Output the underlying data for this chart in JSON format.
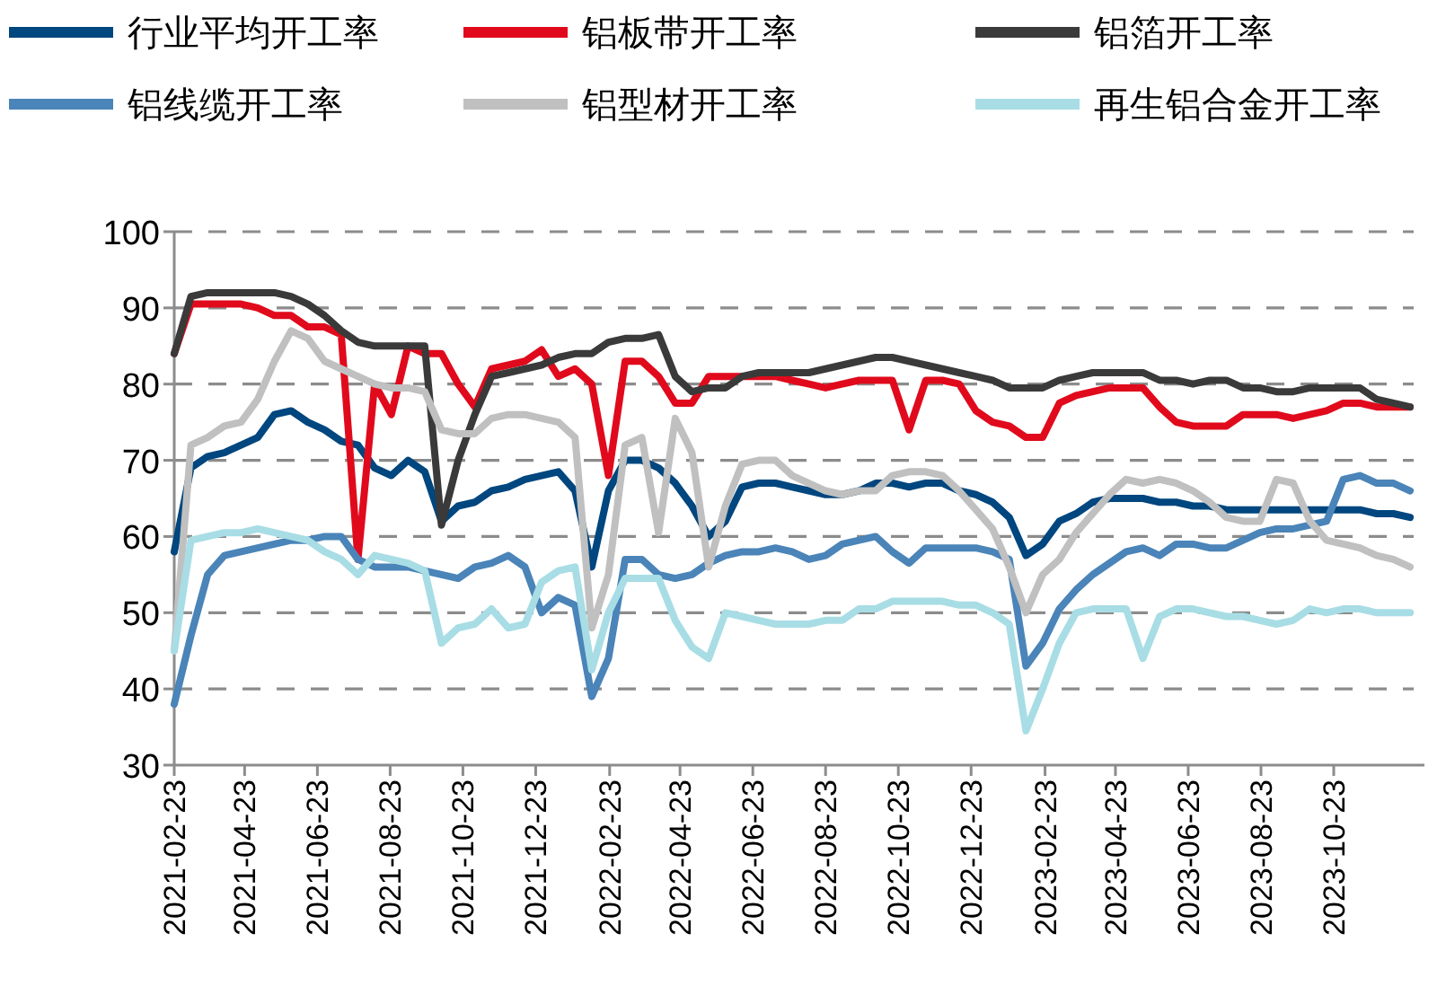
{
  "chart_data": {
    "type": "line",
    "legend": "top",
    "grid": "y",
    "xlim": [
      "2021-02-23",
      "2023-12-29"
    ],
    "ylim": [
      30,
      100
    ],
    "xticks": [
      "2021-02-23",
      "2021-04-23",
      "2021-06-23",
      "2021-08-23",
      "2021-10-23",
      "2021-12-23",
      "2022-02-23",
      "2022-04-23",
      "2022-06-23",
      "2022-08-23",
      "2022-10-23",
      "2022-12-23",
      "2023-02-23",
      "2023-04-23",
      "2023-06-23",
      "2023-08-23",
      "2023-10-23"
    ],
    "yticks": [
      30,
      40,
      50,
      60,
      70,
      80,
      90,
      100
    ],
    "x": [
      "2021-02-23",
      "2021-03-09",
      "2021-03-23",
      "2021-04-06",
      "2021-04-20",
      "2021-05-04",
      "2021-05-18",
      "2021-06-01",
      "2021-06-15",
      "2021-06-29",
      "2021-07-13",
      "2021-07-27",
      "2021-08-10",
      "2021-08-24",
      "2021-09-07",
      "2021-09-21",
      "2021-10-05",
      "2021-10-19",
      "2021-11-02",
      "2021-11-16",
      "2021-11-30",
      "2021-12-14",
      "2021-12-28",
      "2022-01-11",
      "2022-01-25",
      "2022-02-08",
      "2022-02-22",
      "2022-03-08",
      "2022-03-22",
      "2022-04-05",
      "2022-04-19",
      "2022-05-03",
      "2022-05-17",
      "2022-05-31",
      "2022-06-14",
      "2022-06-28",
      "2022-07-12",
      "2022-07-26",
      "2022-08-09",
      "2022-08-23",
      "2022-09-06",
      "2022-09-20",
      "2022-10-04",
      "2022-10-18",
      "2022-11-01",
      "2022-11-15",
      "2022-11-29",
      "2022-12-13",
      "2022-12-27",
      "2023-01-10",
      "2023-01-24",
      "2023-02-07",
      "2023-02-21",
      "2023-03-07",
      "2023-03-21",
      "2023-04-04",
      "2023-04-18",
      "2023-05-02",
      "2023-05-16",
      "2023-05-30",
      "2023-06-13",
      "2023-06-27",
      "2023-07-11",
      "2023-07-25",
      "2023-08-08",
      "2023-08-22",
      "2023-09-05",
      "2023-09-19",
      "2023-10-03",
      "2023-10-17",
      "2023-10-31",
      "2023-11-14",
      "2023-11-28",
      "2023-12-12",
      "2023-12-26"
    ],
    "series": [
      {
        "name": "行业平均开工率",
        "color": "#00467f",
        "values": [
          58,
          69,
          70.5,
          71,
          72,
          73,
          76,
          76.5,
          75,
          74,
          72.5,
          72,
          69,
          68,
          70,
          68.5,
          62,
          64,
          64.5,
          66,
          66.5,
          67.5,
          68,
          68.5,
          66,
          56,
          66,
          70,
          70,
          69,
          67,
          64,
          60,
          62,
          66.5,
          67,
          67,
          66.5,
          66,
          65.5,
          65.5,
          66,
          67,
          67,
          66.5,
          67,
          67,
          66,
          65.5,
          64.5,
          62.5,
          57.5,
          59,
          62,
          63,
          64.5,
          65,
          65,
          65,
          64.5,
          64.5,
          64,
          64,
          63.5,
          63.5,
          63.5,
          63.5,
          63.5,
          63.5,
          63.5,
          63.5,
          63.5,
          63,
          63,
          62.5
        ]
      },
      {
        "name": "铝板带开工率",
        "color": "#e00a1c",
        "values": [
          84,
          90.5,
          90.5,
          90.5,
          90.5,
          90,
          89,
          89,
          87.5,
          87.5,
          86.5,
          57,
          80,
          76,
          85,
          84,
          84,
          80,
          77,
          82,
          82.5,
          83,
          84.5,
          81,
          82,
          80,
          68,
          83,
          83,
          81,
          77.5,
          77.5,
          81,
          81,
          81,
          81,
          81,
          80.5,
          80,
          79.5,
          80,
          80.5,
          80.5,
          80.5,
          74,
          80.5,
          80.5,
          80,
          76.5,
          75,
          74.5,
          73,
          73,
          77.5,
          78.5,
          79,
          79.5,
          79.5,
          79.5,
          77,
          75,
          74.5,
          74.5,
          74.5,
          76,
          76,
          76,
          75.5,
          76,
          76.5,
          77.5,
          77.5,
          77,
          77,
          77
        ]
      },
      {
        "name": "铝箔开工率",
        "color": "#3a3a3a",
        "values": [
          84,
          91.5,
          92,
          92,
          92,
          92,
          92,
          91.5,
          90.5,
          89,
          87,
          85.5,
          85,
          85,
          85,
          85,
          61.5,
          70,
          76,
          81,
          81.5,
          82,
          82.5,
          83.5,
          84,
          84,
          85.5,
          86,
          86,
          86.5,
          81,
          79,
          79.5,
          79.5,
          81,
          81.5,
          81.5,
          81.5,
          81.5,
          82,
          82.5,
          83,
          83.5,
          83.5,
          83,
          82.5,
          82,
          81.5,
          81,
          80.5,
          79.5,
          79.5,
          79.5,
          80.5,
          81,
          81.5,
          81.5,
          81.5,
          81.5,
          80.5,
          80.5,
          80,
          80.5,
          80.5,
          79.5,
          79.5,
          79,
          79,
          79.5,
          79.5,
          79.5,
          79.5,
          78,
          77.5,
          77
        ]
      },
      {
        "name": "铝线缆开工率",
        "color": "#4a84b8",
        "values": [
          38,
          47,
          55,
          57.5,
          58,
          58.5,
          59,
          59.5,
          59.5,
          60,
          60,
          57,
          56,
          56,
          56,
          55.5,
          55,
          54.5,
          56,
          56.5,
          57.5,
          56,
          50,
          52,
          51,
          39,
          44,
          57,
          57,
          55,
          54.5,
          55,
          56.5,
          57.5,
          58,
          58,
          58.5,
          58,
          57,
          57.5,
          59,
          59.5,
          60,
          58,
          56.5,
          58.5,
          58.5,
          58.5,
          58.5,
          58,
          57,
          43,
          46,
          50.5,
          53,
          55,
          56.5,
          58,
          58.5,
          57.5,
          59,
          59,
          58.5,
          58.5,
          59.5,
          60.5,
          61,
          61,
          61.5,
          62,
          67.5,
          68,
          67,
          67,
          66
        ]
      },
      {
        "name": "铝型材开工率",
        "color": "#c0c0c0",
        "values": [
          45,
          72,
          73,
          74.5,
          75,
          78,
          83,
          87,
          86,
          83,
          82,
          81,
          80,
          79.5,
          79.5,
          79,
          74,
          73.5,
          73.5,
          75.5,
          76,
          76,
          75.5,
          75,
          73,
          48,
          55,
          72,
          73,
          60.5,
          75.5,
          71,
          56,
          64,
          69.5,
          70,
          70,
          68,
          67,
          66,
          65.5,
          66,
          66,
          68,
          68.5,
          68.5,
          68,
          66,
          63.5,
          61,
          56,
          50,
          55,
          57,
          60.5,
          63,
          65.5,
          67.5,
          67,
          67.5,
          67,
          66,
          64.5,
          62.5,
          62,
          62,
          67.5,
          67,
          62,
          59.5,
          59,
          58.5,
          57.5,
          57,
          56
        ]
      },
      {
        "name": "再生铝合金开工率",
        "color": "#a8dde5",
        "values": [
          45,
          59.5,
          60,
          60.5,
          60.5,
          61,
          60.5,
          60,
          59.5,
          58,
          57,
          55,
          57.5,
          57,
          56.5,
          55.5,
          46,
          48,
          48.5,
          50.5,
          48,
          48.5,
          54,
          55.5,
          56,
          42.5,
          50,
          54.5,
          54.5,
          54.5,
          49,
          45.5,
          44,
          50,
          49.5,
          49,
          48.5,
          48.5,
          48.5,
          49,
          49,
          50.5,
          50.5,
          51.5,
          51.5,
          51.5,
          51.5,
          51,
          51,
          50,
          48.5,
          34.5,
          40,
          46,
          50,
          50.5,
          50.5,
          50.5,
          44,
          49.5,
          50.5,
          50.5,
          50,
          49.5,
          49.5,
          49,
          48.5,
          49,
          50.5,
          50,
          50.5,
          50.5,
          50,
          50,
          50
        ]
      }
    ]
  }
}
